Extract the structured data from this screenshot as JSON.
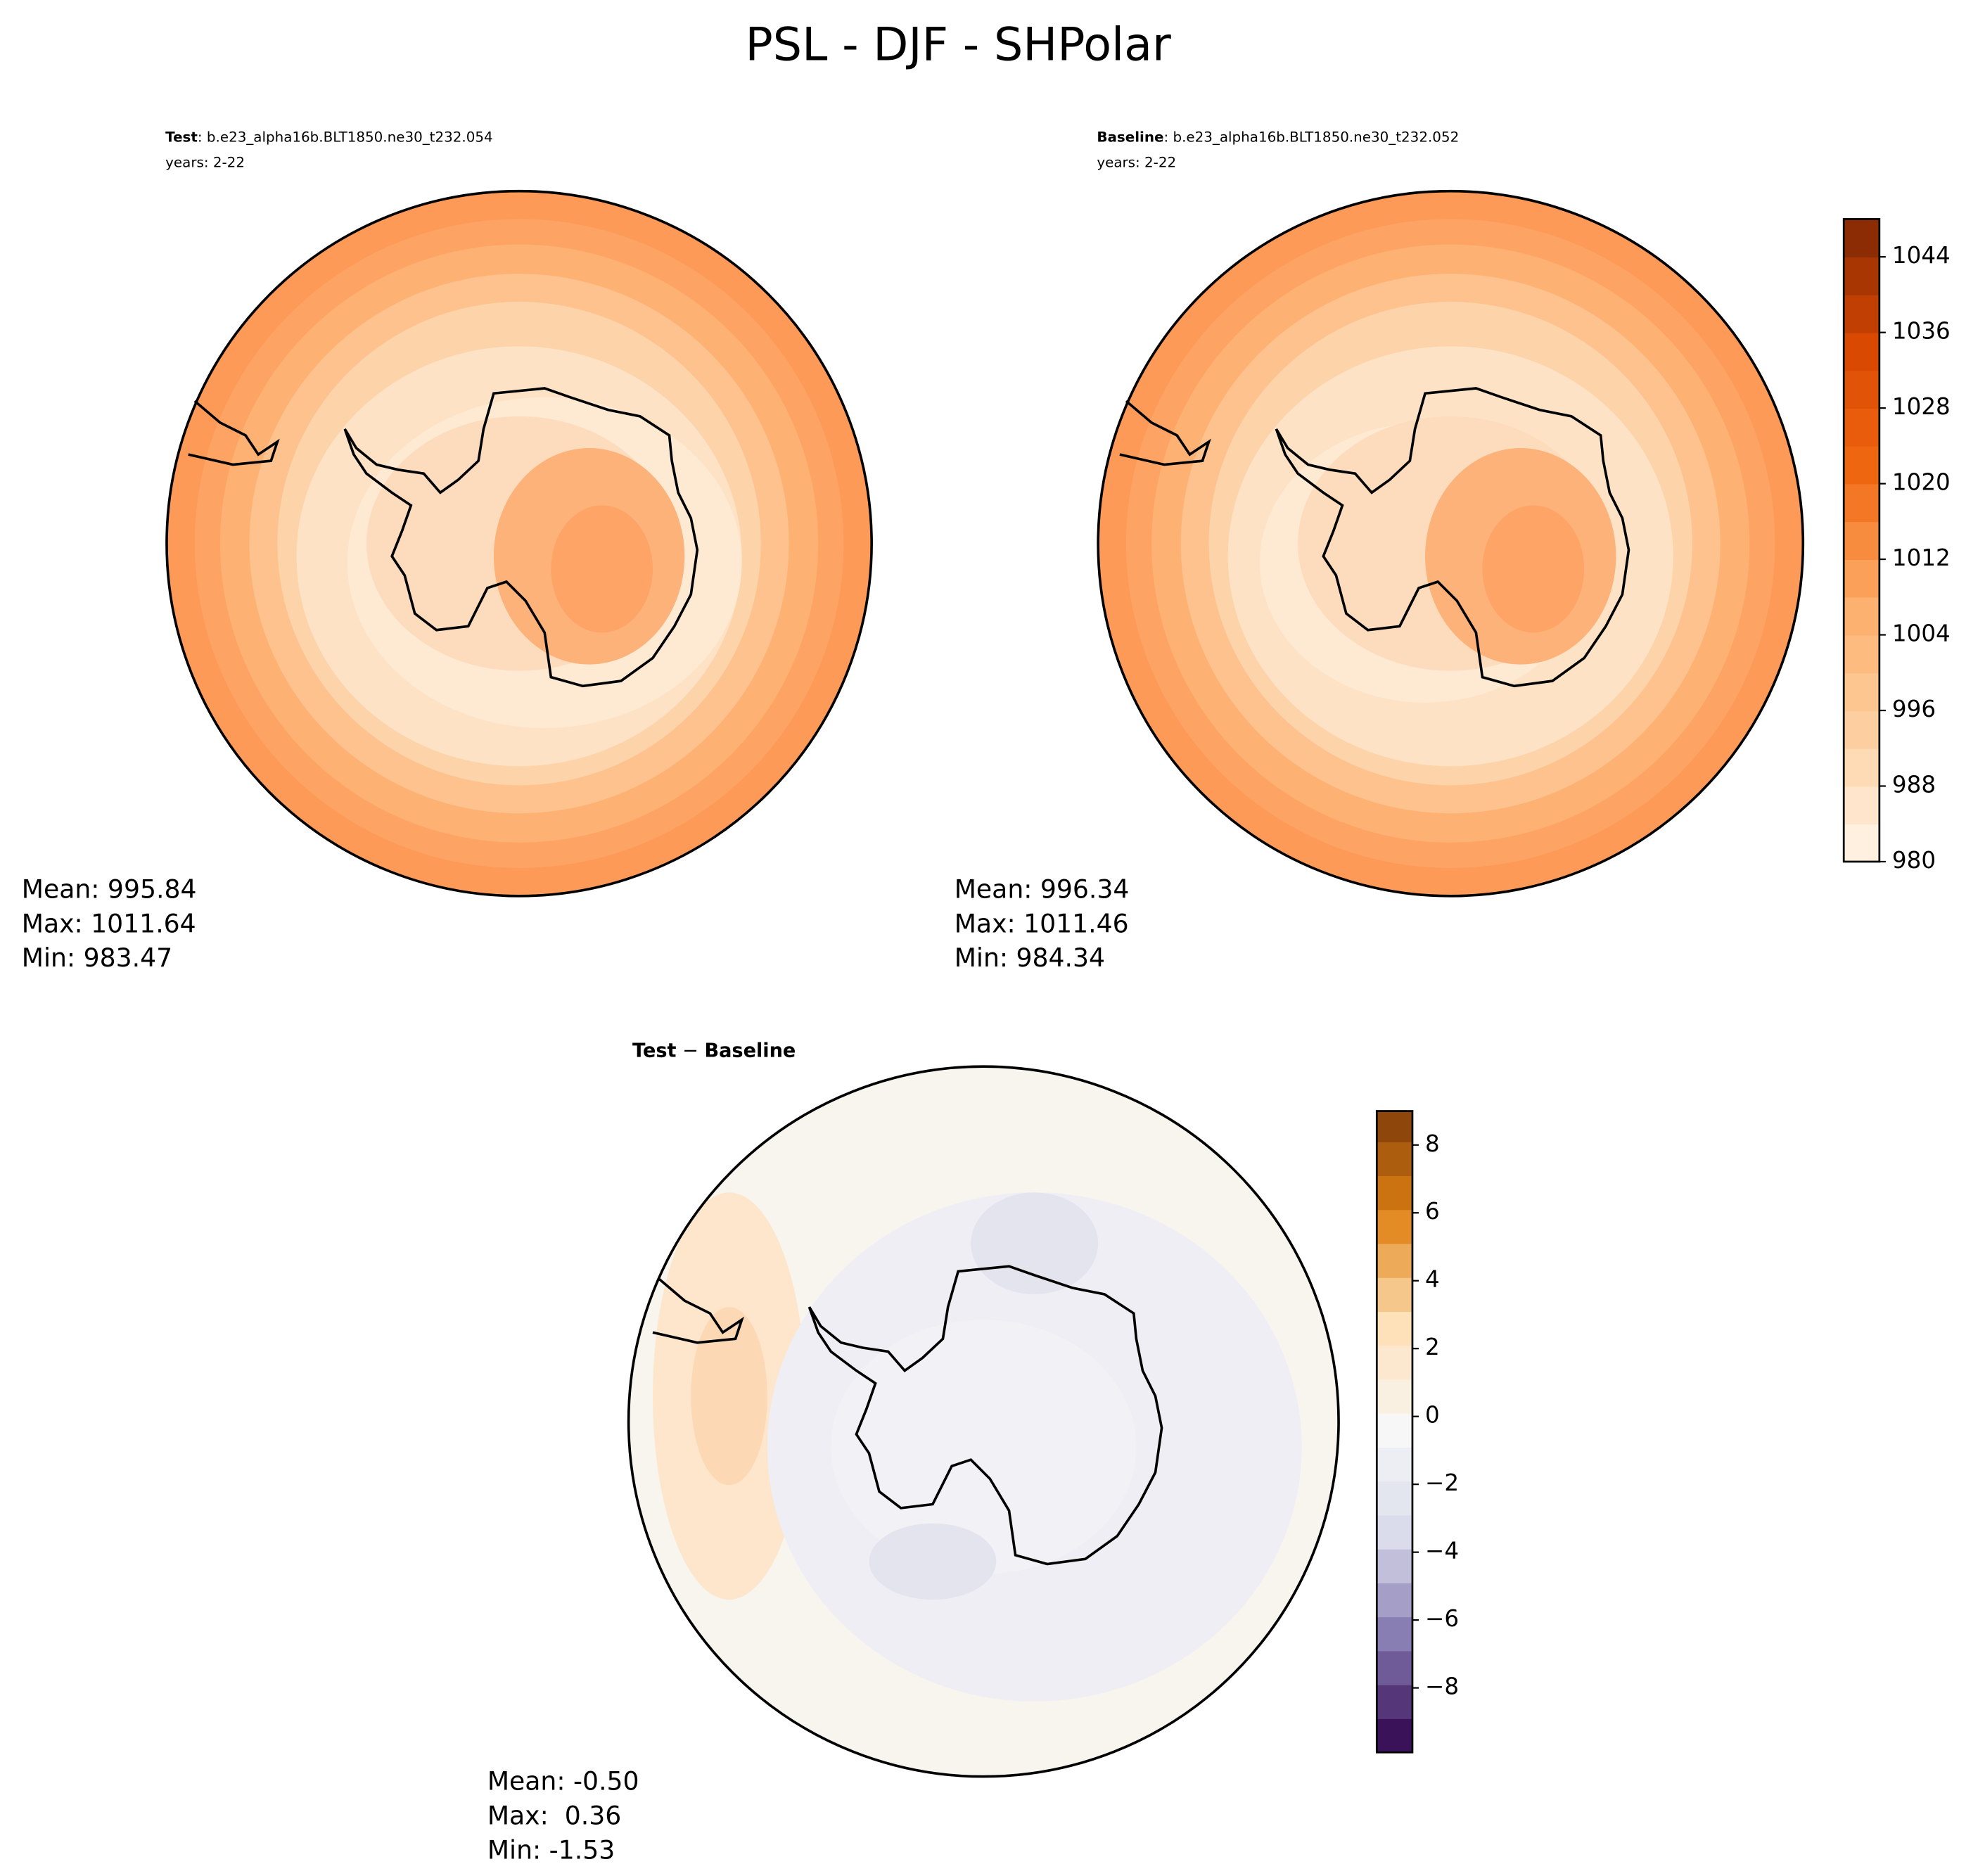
{
  "title": "PSL - DJF - SHPolar",
  "panels": [
    {
      "label": "Test",
      "case": ": b.e23_alpha16b.BLT1850.ne30_t232.054",
      "years": "years: 2-22",
      "stats": [
        "Mean: 995.84",
        "Max: 1011.64",
        "Min: 983.47"
      ]
    },
    {
      "label": "Baseline",
      "case": ": b.e23_alpha16b.BLT1850.ne30_t232.052",
      "years": "years: 2-22",
      "stats": [
        "Mean: 996.34",
        "Max: 1011.46",
        "Min: 984.34"
      ]
    },
    {
      "label": "Test",
      "sep": " − ",
      "label2": "Baseline",
      "stats": [
        "Mean: -0.50",
        "Max:  0.36",
        "Min: -1.53"
      ]
    }
  ],
  "colorbars": [
    {
      "lim": [
        980,
        1048
      ],
      "ticks": [
        980,
        988,
        996,
        1004,
        1012,
        1020,
        1028,
        1036,
        1044
      ],
      "colormap": [
        "#fff5eb",
        "#fdd0a2",
        "#fdae6b",
        "#f16913",
        "#d94801",
        "#7f2704"
      ]
    },
    {
      "lim": [
        -9.9,
        9
      ],
      "ticks": [
        {
          "value": -8,
          "label": "−8"
        },
        {
          "value": -6,
          "label": "−6"
        },
        {
          "value": -4,
          "label": "−4"
        },
        {
          "value": -2,
          "label": "−2"
        },
        0,
        2,
        4,
        6,
        8
      ],
      "colormap": [
        "#2d004b",
        "#8073ac",
        "#d8daeb",
        "#f7f7f7",
        "#fee0b6",
        "#e08214",
        "#7f3b08"
      ]
    }
  ]
}
